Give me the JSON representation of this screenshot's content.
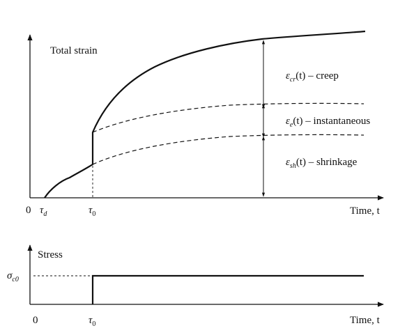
{
  "top_chart": {
    "title": "Total strain",
    "x_axis_label": "Time, t",
    "origin_label": "0",
    "tau_d_label": "τ",
    "tau_d_sub": "d",
    "tau0_label": "τ",
    "tau0_sub": "0",
    "components": [
      {
        "symbol": "ε",
        "sub": "cr",
        "text": "(t) – creep"
      },
      {
        "symbol": "ε",
        "sub": "e",
        "text": "(t) – instantaneous"
      },
      {
        "symbol": "ε",
        "sub": "sh",
        "text": "(t) – shrinkage"
      }
    ]
  },
  "bottom_chart": {
    "title": "Stress",
    "x_axis_label": "Time, t",
    "origin_label": "0",
    "tau0_label": "τ",
    "tau0_sub": "0",
    "sigma_label": "σ",
    "sigma_sub": "c0"
  }
}
